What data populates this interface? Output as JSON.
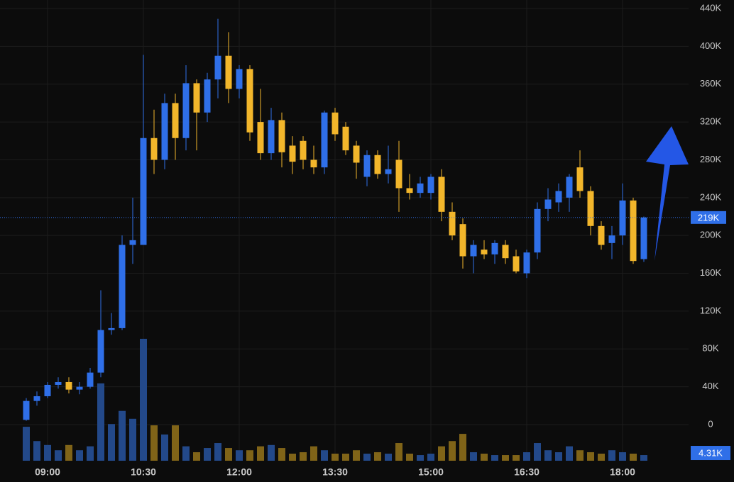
{
  "chart_data": {
    "type": "candlestick",
    "categories": [
      null,
      null,
      "09:00",
      null,
      null,
      null,
      null,
      null,
      null,
      null,
      null,
      "10:30",
      null,
      null,
      null,
      null,
      null,
      null,
      null,
      null,
      "12:00",
      null,
      null,
      null,
      null,
      null,
      null,
      null,
      null,
      "13:30",
      null,
      null,
      null,
      null,
      null,
      null,
      null,
      null,
      "15:00",
      null,
      null,
      null,
      null,
      null,
      null,
      null,
      null,
      "16:30",
      null,
      null,
      null,
      null,
      null,
      null,
      null,
      null,
      "18:00",
      null,
      null
    ],
    "open": [
      5000,
      25000,
      30000,
      42000,
      45000,
      37000,
      40000,
      55000,
      100000,
      102000,
      190000,
      190000,
      303000,
      280000,
      340000,
      303000,
      361000,
      330000,
      365000,
      390000,
      355000,
      376000,
      320000,
      287000,
      322000,
      295000,
      300000,
      280000,
      272000,
      330000,
      315000,
      295000,
      262000,
      285000,
      265000,
      280000,
      250000,
      245000,
      245000,
      262000,
      225000,
      212000,
      178000,
      185000,
      180000,
      190000,
      178000,
      160000,
      182000,
      228000,
      235000,
      240000,
      272000,
      247000,
      210000,
      192000,
      200000,
      237000,
      175000
    ],
    "high": [
      28000,
      35000,
      45000,
      50000,
      50000,
      45000,
      60000,
      142000,
      118000,
      200000,
      240000,
      391000,
      333000,
      350000,
      350000,
      380000,
      365000,
      372000,
      429000,
      415000,
      380000,
      380000,
      355000,
      335000,
      330000,
      305000,
      305000,
      295000,
      332000,
      335000,
      320000,
      300000,
      290000,
      290000,
      295000,
      300000,
      265000,
      262000,
      265000,
      270000,
      235000,
      218000,
      195000,
      195000,
      195000,
      195000,
      185000,
      185000,
      235000,
      250000,
      255000,
      265000,
      290000,
      252000,
      215000,
      210000,
      255000,
      240000,
      220000
    ],
    "low": [
      4000,
      20000,
      28000,
      38000,
      33000,
      32000,
      38000,
      50000,
      95000,
      100000,
      170000,
      190000,
      265000,
      270000,
      280000,
      290000,
      290000,
      320000,
      345000,
      340000,
      345000,
      300000,
      280000,
      280000,
      272000,
      265000,
      270000,
      265000,
      265000,
      300000,
      285000,
      260000,
      252000,
      260000,
      255000,
      225000,
      238000,
      240000,
      238000,
      215000,
      195000,
      165000,
      160000,
      175000,
      170000,
      170000,
      160000,
      155000,
      175000,
      215000,
      225000,
      225000,
      240000,
      200000,
      185000,
      175000,
      190000,
      170000,
      172000
    ],
    "close": [
      25000,
      30000,
      42000,
      45000,
      37000,
      40000,
      55000,
      100000,
      102000,
      190000,
      195000,
      303000,
      280000,
      340000,
      303000,
      361000,
      330000,
      365000,
      390000,
      355000,
      376000,
      309000,
      287000,
      322000,
      288000,
      278000,
      280000,
      272000,
      330000,
      307000,
      290000,
      277000,
      285000,
      265000,
      270000,
      250000,
      245000,
      255000,
      262000,
      225000,
      200000,
      178000,
      190000,
      180000,
      192000,
      176000,
      162000,
      182000,
      228000,
      238000,
      247000,
      262000,
      247000,
      210000,
      190000,
      200000,
      237000,
      173000,
      219000
    ],
    "volume": [
      25900,
      15000,
      12000,
      8000,
      12000,
      8000,
      11000,
      59000,
      28000,
      38000,
      32000,
      93000,
      27000,
      20000,
      27000,
      11000,
      6500,
      9700,
      13500,
      9700,
      8000,
      8000,
      11000,
      12000,
      9700,
      5400,
      6500,
      11000,
      8000,
      5400,
      5400,
      8000,
      5400,
      6500,
      5400,
      13500,
      5400,
      4300,
      5400,
      11000,
      15000,
      20500,
      6500,
      5400,
      4300,
      4300,
      4300,
      6500,
      13500,
      8000,
      6500,
      11000,
      8000,
      6500,
      5400,
      8000,
      6500,
      5400,
      4310
    ],
    "ylim": [
      0,
      440000
    ],
    "yticks": [
      0,
      {
        "value": 40000,
        "label": "40K"
      },
      {
        "value": 80000,
        "label": "80K"
      },
      {
        "value": 120000,
        "label": "120K"
      },
      {
        "value": 160000,
        "label": "160K"
      },
      {
        "value": 200000,
        "label": "200K"
      },
      {
        "value": 240000,
        "label": "240K"
      },
      {
        "value": 280000,
        "label": "280K"
      },
      {
        "value": 320000,
        "label": "320K"
      },
      {
        "value": 360000,
        "label": "360K"
      },
      {
        "value": 400000,
        "label": "400K"
      },
      {
        "value": 440000,
        "label": "440K"
      }
    ],
    "volume_lim": [
      0,
      100000
    ],
    "last_price": {
      "value": 219000,
      "label": "219K"
    },
    "last_volume": {
      "value": 4310,
      "label": "4.31K"
    },
    "up_color": "#2f6fe8",
    "down_color": "#f2b62b",
    "up_volume_color": "#23498a",
    "down_volume_color": "#806418",
    "grid": true
  }
}
